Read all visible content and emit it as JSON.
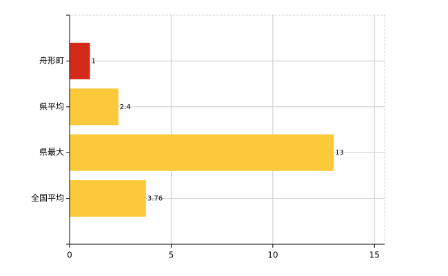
{
  "chart_data": {
    "type": "barh",
    "categories": [
      "舟形町",
      "県平均",
      "県最大",
      "全国平均"
    ],
    "values": [
      1,
      2.4,
      13,
      3.76
    ],
    "colors": [
      "#d42a1a",
      "#fcc93a",
      "#fcc93a",
      "#fcc93a"
    ],
    "xlim": [
      0,
      15.5
    ],
    "xticks": [
      0,
      5,
      10,
      15
    ],
    "grid": true
  }
}
